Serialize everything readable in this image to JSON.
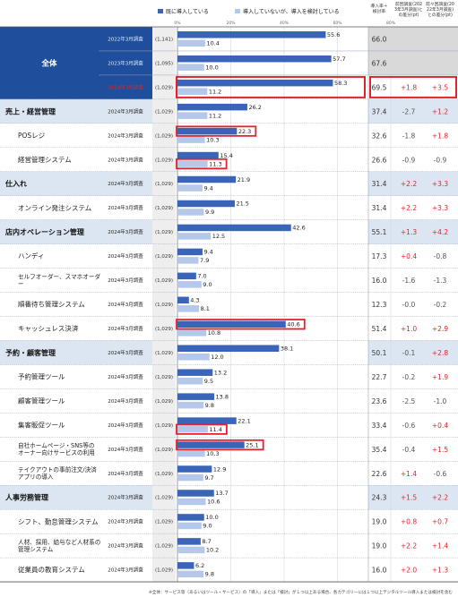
{
  "chart_data": {
    "type": "bar",
    "orientation": "horizontal",
    "legend": {
      "placement": "top",
      "series": [
        {
          "name": "既に導入している",
          "color": "#3a64b8"
        },
        {
          "name": "導入していないが、導入を検討している",
          "color": "#b5c8ea"
        }
      ]
    },
    "ticks": [
      "0%",
      "20%",
      "40%",
      "60%",
      "80%"
    ],
    "xlim": [
      0,
      80
    ],
    "column_headers": {
      "col1": "導入率＋検討率",
      "col2": "前回調査(2023年3月調査)との差分(pt)",
      "col3": "前々回調査(2022年3月調査)との差分(pt)"
    },
    "rows": [
      {
        "group": "全体",
        "category": "",
        "survey": "2022年3月調査",
        "n": "(1,141)",
        "adopted": 55.6,
        "considering": 10.4,
        "total": "66.0",
        "diff1": "",
        "diff2": "",
        "highlight": false,
        "style": "total"
      },
      {
        "group": "全体",
        "category": "",
        "survey": "2023年3月調査",
        "n": "(1,095)",
        "adopted": 57.7,
        "considering": 10.0,
        "total": "67.6",
        "diff1": "",
        "diff2": "",
        "highlight": false,
        "style": "total"
      },
      {
        "group": "全体",
        "category": "全体",
        "survey": "2024年3月調査",
        "n": "(1,029)",
        "adopted": 58.3,
        "considering": 11.2,
        "total": "69.5",
        "diff1": "+1.8",
        "diff2": "+3.5",
        "highlight": true,
        "style": "total"
      },
      {
        "category": "売上・経営管理",
        "survey": "2024年3月調査",
        "n": "(1,029)",
        "adopted": 26.2,
        "considering": 11.2,
        "total": "37.4",
        "diff1": "-2.7",
        "diff2": "+1.2",
        "highlight": false,
        "style": "group"
      },
      {
        "category": "POSレジ",
        "survey": "2024年3月調査",
        "n": "(1,029)",
        "adopted": 22.3,
        "considering": 10.3,
        "total": "32.6",
        "diff1": "-1.8",
        "diff2": "+1.8",
        "highlight": true,
        "style": "item"
      },
      {
        "category": "経営管理システム",
        "survey": "2024年3月調査",
        "n": "(1,029)",
        "adopted": 15.4,
        "considering": 11.3,
        "total": "26.6",
        "diff1": "-0.9",
        "diff2": "-0.9",
        "highlight": true,
        "style": "item"
      },
      {
        "category": "仕入れ",
        "survey": "2024年3月調査",
        "n": "(1,029)",
        "adopted": 21.9,
        "considering": 9.4,
        "total": "31.4",
        "diff1": "+2.2",
        "diff2": "+3.3",
        "highlight": false,
        "style": "group"
      },
      {
        "category": "オンライン発注システム",
        "survey": "2024年3月調査",
        "n": "(1,029)",
        "adopted": 21.5,
        "considering": 9.9,
        "total": "31.4",
        "diff1": "+2.2",
        "diff2": "+3.3",
        "highlight": false,
        "style": "item"
      },
      {
        "category": "店内オペレーション管理",
        "survey": "2024年3月調査",
        "n": "(1,029)",
        "adopted": 42.6,
        "considering": 12.5,
        "total": "55.1",
        "diff1": "+1.3",
        "diff2": "+4.2",
        "highlight": false,
        "style": "group"
      },
      {
        "category": "ハンディ",
        "survey": "2024年3月調査",
        "n": "(1,029)",
        "adopted": 9.4,
        "considering": 7.9,
        "total": "17.3",
        "diff1": "+0.4",
        "diff2": "-0.8",
        "highlight": false,
        "style": "item"
      },
      {
        "category": "セルフオーダー、スマホオーダー",
        "survey": "2024年3月調査",
        "n": "(1,029)",
        "adopted": 7.0,
        "considering": 9.0,
        "total": "16.0",
        "diff1": "-1.6",
        "diff2": "-1.3",
        "highlight": false,
        "style": "item"
      },
      {
        "category": "順番待ち管理システム",
        "survey": "2024年3月調査",
        "n": "(1,029)",
        "adopted": 4.3,
        "considering": 8.1,
        "total": "12.3",
        "diff1": "-0.0",
        "diff2": "-0.2",
        "highlight": false,
        "style": "item"
      },
      {
        "category": "キャッシュレス決済",
        "survey": "2024年3月調査",
        "n": "(1,029)",
        "adopted": 40.6,
        "considering": 10.8,
        "total": "51.4",
        "diff1": "+1.0",
        "diff2": "+2.9",
        "highlight": true,
        "style": "item"
      },
      {
        "category": "予約・顧客管理",
        "survey": "2024年3月調査",
        "n": "(1,029)",
        "adopted": 38.1,
        "considering": 12.0,
        "total": "50.1",
        "diff1": "-0.1",
        "diff2": "+2.8",
        "highlight": false,
        "style": "group"
      },
      {
        "category": "予約管理ツール",
        "survey": "2024年3月調査",
        "n": "(1,029)",
        "adopted": 13.2,
        "considering": 9.5,
        "total": "22.7",
        "diff1": "-0.2",
        "diff2": "+1.9",
        "highlight": false,
        "style": "item"
      },
      {
        "category": "顧客管理ツール",
        "survey": "2024年3月調査",
        "n": "(1,029)",
        "adopted": 13.8,
        "considering": 9.8,
        "total": "23.6",
        "diff1": "-2.5",
        "diff2": "-1.0",
        "highlight": false,
        "style": "item"
      },
      {
        "category": "集客販促ツール",
        "survey": "2024年3月調査",
        "n": "(1,029)",
        "adopted": 22.1,
        "considering": 11.4,
        "total": "33.4",
        "diff1": "-0.6",
        "diff2": "+0.4",
        "highlight": true,
        "style": "item"
      },
      {
        "category": "自社ホームページ・SNS等のオーナー向けサービスの利用",
        "survey": "2024年3月調査",
        "n": "(1,029)",
        "adopted": 25.1,
        "considering": 10.3,
        "total": "35.4",
        "diff1": "-0.4",
        "diff2": "+1.5",
        "highlight": true,
        "style": "item"
      },
      {
        "category": "テイクアウトの事前注文/決済アプリの導入",
        "survey": "2024年3月調査",
        "n": "(1,029)",
        "adopted": 12.9,
        "considering": 9.7,
        "total": "22.6",
        "diff1": "+1.4",
        "diff2": "-0.6",
        "highlight": false,
        "style": "item"
      },
      {
        "category": "人事労務管理",
        "survey": "2024年3月調査",
        "n": "(1,029)",
        "adopted": 13.7,
        "considering": 10.6,
        "total": "24.3",
        "diff1": "+1.5",
        "diff2": "+2.2",
        "highlight": false,
        "style": "group"
      },
      {
        "category": "シフト、勤怠管理システム",
        "survey": "2024年3月調査",
        "n": "(1,029)",
        "adopted": 10.0,
        "considering": 9.0,
        "total": "19.0",
        "diff1": "+0.8",
        "diff2": "+0.7",
        "highlight": false,
        "style": "item"
      },
      {
        "category": "人材、採用、給与など人材系の管理システム",
        "survey": "2024年3月調査",
        "n": "(1,029)",
        "adopted": 8.7,
        "considering": 10.2,
        "total": "19.0",
        "diff1": "+2.2",
        "diff2": "+1.4",
        "highlight": false,
        "style": "item"
      },
      {
        "category": "従業員の教育システム",
        "survey": "2024年3月調査",
        "n": "(1,029)",
        "adopted": 6.2,
        "considering": 9.8,
        "total": "16.0",
        "diff1": "+2.0",
        "diff2": "+1.3",
        "highlight": false,
        "style": "item"
      }
    ],
    "footnote": "※全体：サービス等（あるいはツール・サービス）の「導入」または「検討」が１つ以上ある場合、各カテゴリーには１つ以上デジタルツール導入または検討を含む"
  }
}
